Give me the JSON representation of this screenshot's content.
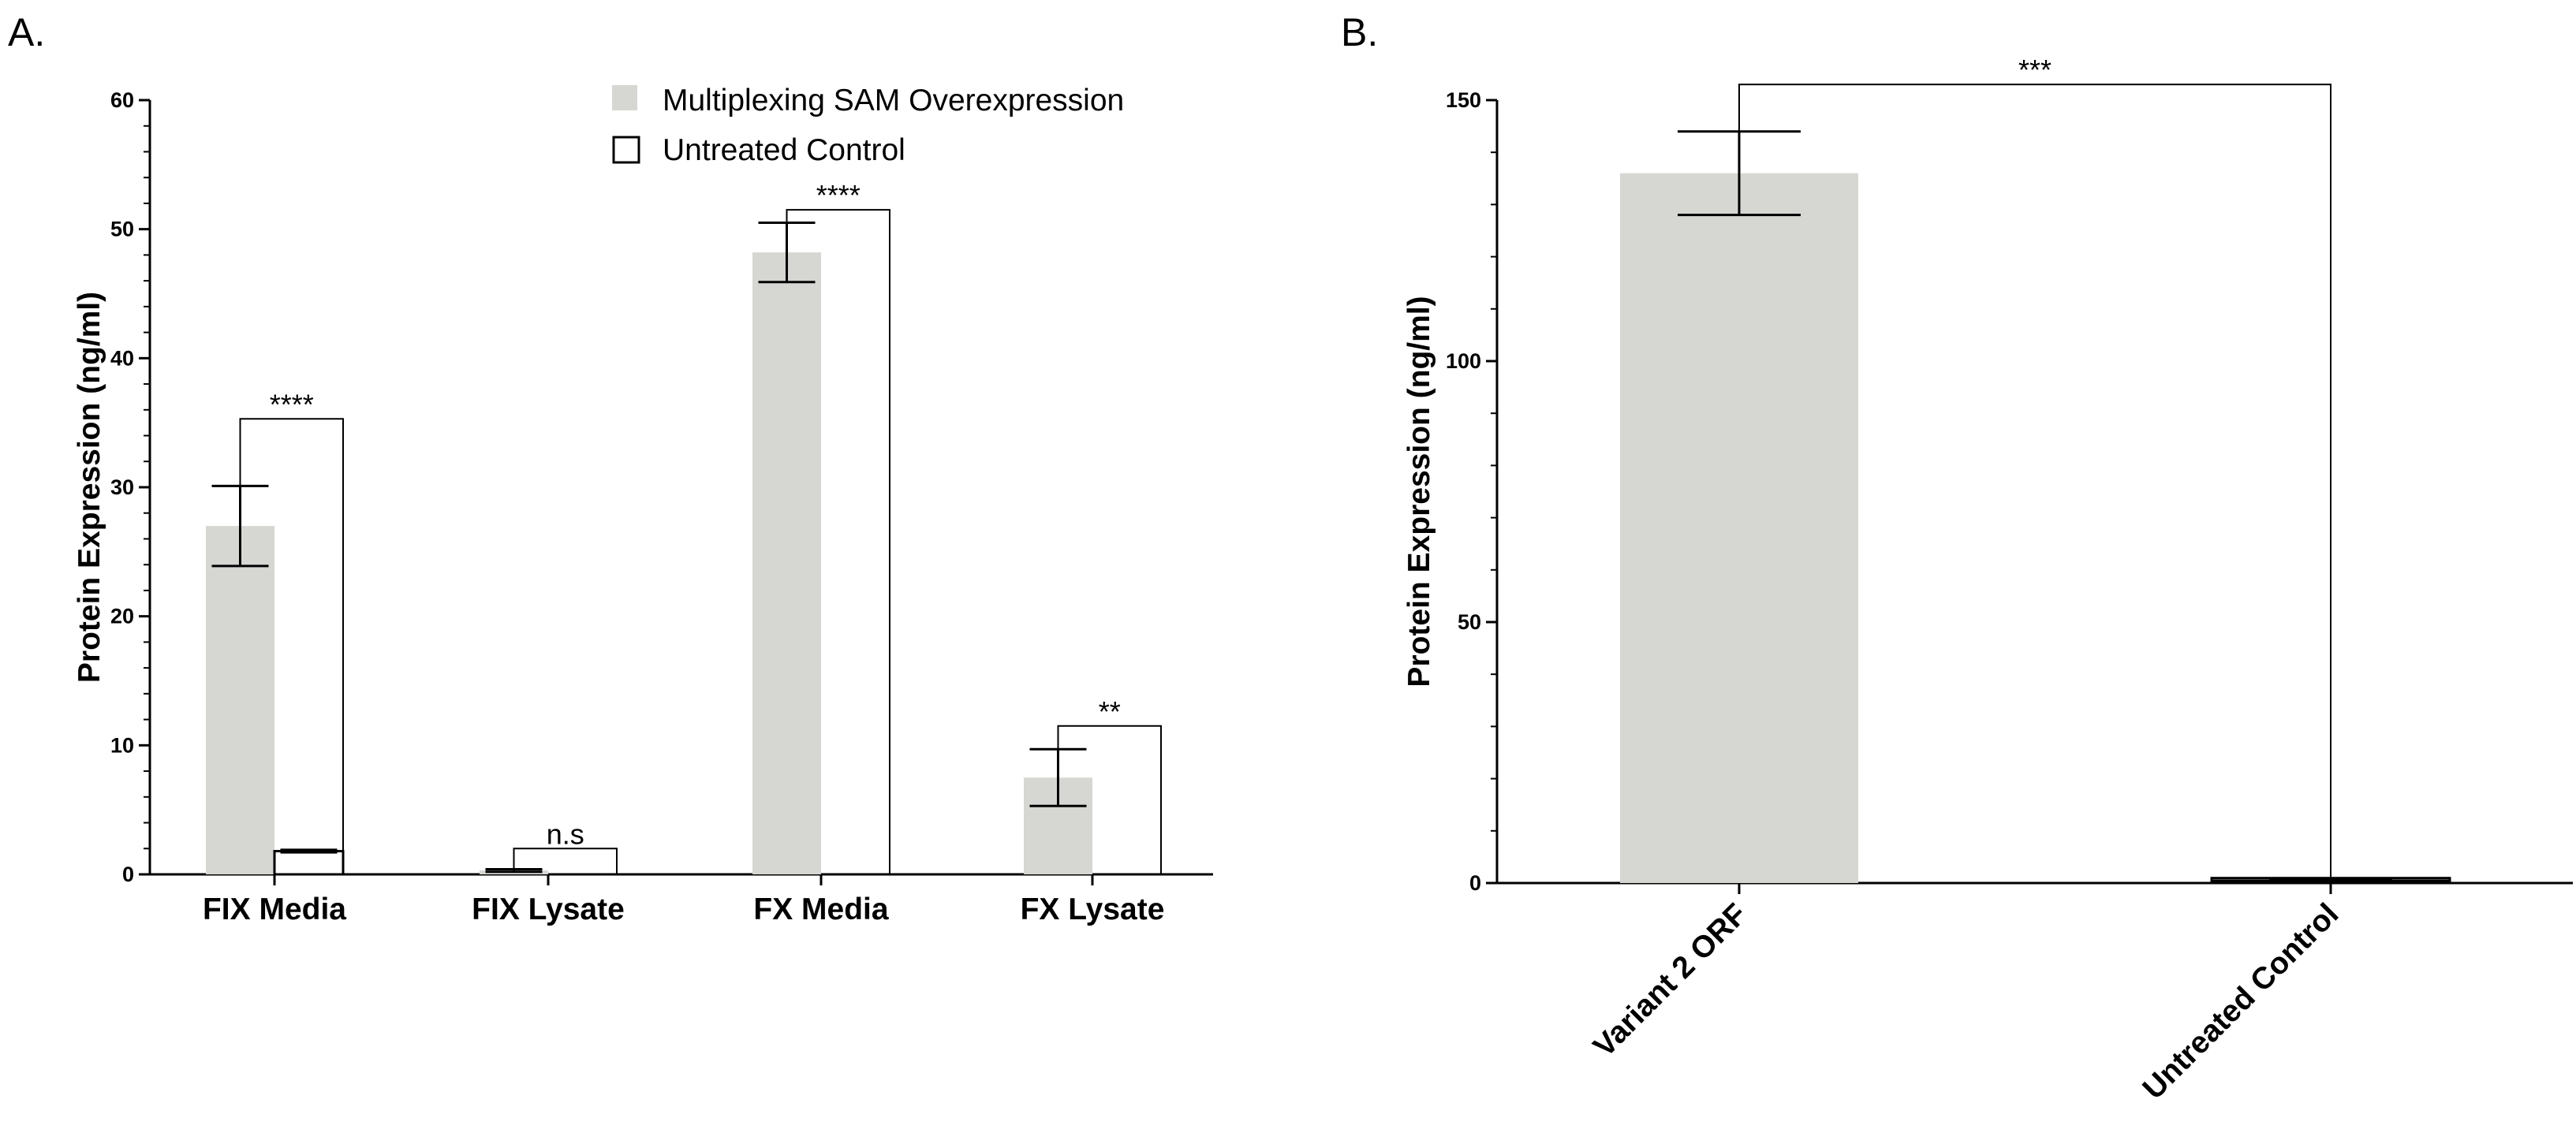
{
  "colors": {
    "filled": "#d6d7d3",
    "outline": "#000000",
    "axis": "#000000"
  },
  "chart_data": [
    {
      "id": "A",
      "panel_label": "A.",
      "type": "bar",
      "title": "",
      "xlabel": "",
      "ylabel": "Protein Expression (ng/ml)",
      "ylim": [
        0,
        60
      ],
      "yticks": [
        0,
        10,
        20,
        30,
        40,
        50,
        60
      ],
      "ytick_labels": [
        "0",
        "10",
        "20",
        "30",
        "40",
        "50",
        "60"
      ],
      "minor_tick_step": 2,
      "categories": [
        "FIX Media",
        "FIX Lysate",
        "FX Media",
        "FX Lysate"
      ],
      "series": [
        {
          "name": "Multiplexing SAM Overexpression",
          "style": "filled",
          "values": [
            27.0,
            0.3,
            48.2,
            7.5
          ],
          "errors": [
            3.1,
            0.1,
            2.3,
            2.2
          ]
        },
        {
          "name": "Untreated Control",
          "style": "outline",
          "values": [
            1.8,
            0.0,
            0.0,
            0.0
          ],
          "errors": [
            0.1,
            0.0,
            0.0,
            0.0
          ]
        }
      ],
      "significance": [
        {
          "category": 0,
          "label": "****",
          "y": 35.3
        },
        {
          "category": 1,
          "label": "n.s",
          "y": 2.0
        },
        {
          "category": 2,
          "label": "****",
          "y": 51.5
        },
        {
          "category": 3,
          "label": "**",
          "y": 11.5
        }
      ],
      "legend": {
        "position": "top-right",
        "entries": [
          "Multiplexing SAM Overexpression",
          "Untreated Control"
        ]
      }
    },
    {
      "id": "B",
      "panel_label": "B.",
      "type": "bar",
      "title": "",
      "xlabel": "",
      "ylabel": "Protein Expression (ng/ml)",
      "ylim": [
        0,
        150
      ],
      "yticks": [
        0,
        50,
        100,
        150
      ],
      "ytick_labels": [
        "0",
        "50",
        "100",
        "150"
      ],
      "minor_tick_step": 10,
      "categories": [
        "Variant 2 ORF",
        "Untreated Control"
      ],
      "values": [
        136,
        0.5
      ],
      "errors": [
        8,
        0.2
      ],
      "bar_styles": [
        "filled",
        "outline"
      ],
      "significance": [
        {
          "from": 0,
          "to": 1,
          "label": "***",
          "y": 153
        }
      ]
    }
  ]
}
